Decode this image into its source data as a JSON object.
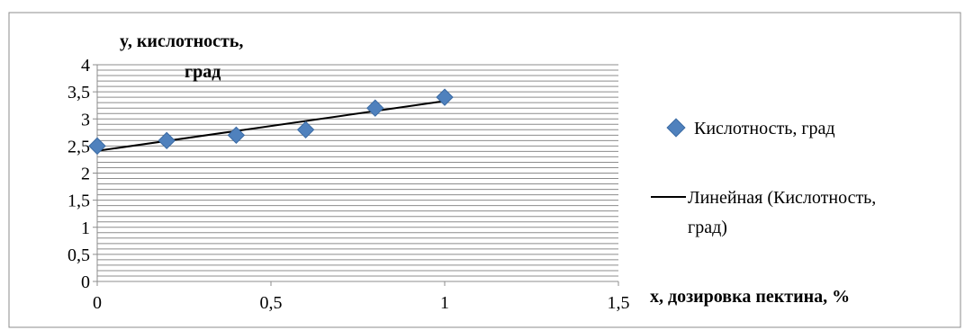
{
  "chart_data": {
    "type": "scatter",
    "ylabel_line1": "y, кислотность,",
    "ylabel_line2": "град",
    "xlabel": "x, дозировка пектина, %",
    "xlim": [
      0,
      1.5
    ],
    "ylim": [
      0,
      4
    ],
    "x_ticks": [
      0,
      0.5,
      1,
      1.5
    ],
    "x_tick_labels": [
      "0",
      "0,5",
      "1",
      "1,5"
    ],
    "y_ticks": [
      0,
      0.5,
      1,
      1.5,
      2,
      2.5,
      3,
      3.5,
      4
    ],
    "y_tick_labels": [
      "0",
      "0,5",
      "1",
      "1,5",
      "2",
      "2,5",
      "3",
      "3,5",
      "4"
    ],
    "grid": "horizontal-minor",
    "legend_position": "right",
    "series": [
      {
        "name": "Кислотность, град",
        "marker": "diamond",
        "color": "#4F81BD",
        "x": [
          0,
          0.2,
          0.4,
          0.6,
          0.8,
          1.0
        ],
        "y": [
          2.5,
          2.6,
          2.7,
          2.8,
          3.2,
          3.4
        ]
      }
    ],
    "trendline": {
      "name_line1": "Линейная (Кислотность,",
      "name_line2": "град)",
      "color": "#000000",
      "x": [
        0,
        1.0
      ],
      "y": [
        2.41,
        3.33
      ]
    }
  }
}
